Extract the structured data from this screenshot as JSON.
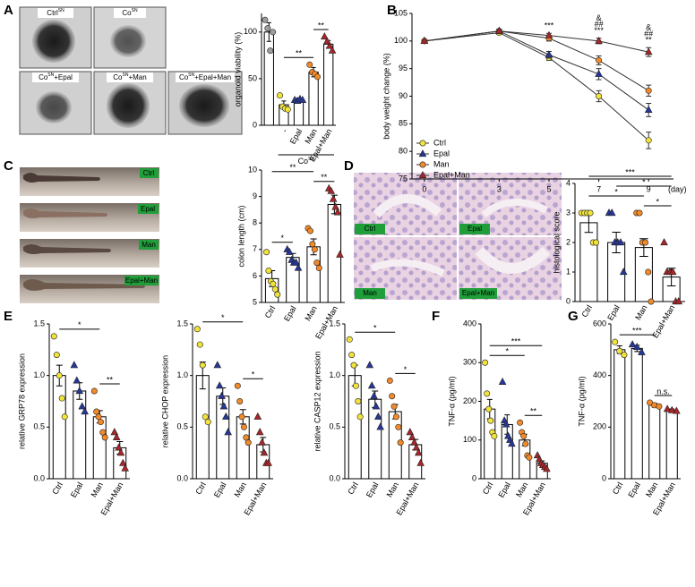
{
  "panel_labels": [
    "A",
    "B",
    "C",
    "D",
    "E",
    "F",
    "G"
  ],
  "images": {
    "A": [
      [
        "Ctrl",
        "SN"
      ],
      [
        "Co",
        "SN"
      ],
      [
        "Co",
        "SN",
        "+Epal"
      ],
      [
        "Co",
        "SN",
        "+Man"
      ],
      [
        "Co",
        "SN",
        "+Epal+Man"
      ]
    ],
    "C": [
      "Ctrl",
      "Epal",
      "Man",
      "Epal+Man"
    ],
    "D": [
      "Ctrl",
      "Epal",
      "Man",
      "Epal+Man"
    ]
  },
  "chart_data": [
    {
      "type": "bar",
      "ylabel": "organoid viability (%)",
      "categories": [
        null,
        "-",
        "Epal",
        "Man",
        "Epal+Man"
      ],
      "values": [
        100,
        22,
        27,
        57,
        87
      ],
      "errors": [
        10,
        4,
        2,
        5,
        4
      ],
      "points": [
        [
          113,
          104,
          80,
          100
        ],
        [
          32,
          20,
          18,
          17
        ],
        [
          27,
          26,
          28,
          27
        ],
        [
          65,
          57,
          55,
          52
        ],
        [
          95,
          90,
          85,
          80
        ]
      ],
      "colors": [
        "#9e9e9e",
        "#f2e33b",
        "#27379a",
        "#f28a2a",
        "#a8262a"
      ],
      "markers": [
        "circle",
        "circle",
        "triangle",
        "circle",
        "triangle"
      ],
      "ylim": [
        0,
        120
      ],
      "yticks": [
        0,
        50,
        100
      ],
      "annotations": [
        {
          "pair": [
            1,
            3
          ],
          "label": "**"
        },
        {
          "pair": [
            3,
            4
          ],
          "label": "**"
        }
      ],
      "group": {
        "label": [
          "Co",
          "SN"
        ],
        "range": [
          1,
          4
        ]
      }
    },
    {
      "type": "line",
      "ylabel": "body weight change (%)",
      "xlabel": "(day)",
      "x": [
        0,
        3,
        5,
        7,
        9
      ],
      "xlim": [
        -0.5,
        10
      ],
      "xticks": [
        0,
        3,
        5,
        7,
        9
      ],
      "ylim": [
        75,
        105
      ],
      "yticks": [
        75,
        80,
        85,
        90,
        95,
        100,
        105
      ],
      "legend": "lower left",
      "series": [
        {
          "name": "Ctrl",
          "color": "#f2e33b",
          "marker": "circle",
          "values": [
            100,
            101.5,
            97,
            90,
            82
          ],
          "errors": [
            0,
            0.3,
            0.5,
            1,
            1.5
          ]
        },
        {
          "name": "Epal",
          "color": "#27379a",
          "marker": "triangle",
          "values": [
            100,
            101.8,
            97.5,
            94,
            87.5
          ],
          "errors": [
            0,
            0.3,
            0.6,
            1,
            1.2
          ]
        },
        {
          "name": "Man",
          "color": "#f28a2a",
          "marker": "circle",
          "values": [
            100,
            101.8,
            100.5,
            96.5,
            91
          ],
          "errors": [
            0,
            0.3,
            0.5,
            0.8,
            1
          ]
        },
        {
          "name": "Epal+Man",
          "color": "#a8262a",
          "marker": "triangle",
          "values": [
            100,
            101.8,
            101,
            100,
            98
          ],
          "errors": [
            0,
            0.3,
            0.4,
            0.5,
            0.8
          ]
        }
      ],
      "point_annotations": [
        {
          "x_index": 2,
          "labels": [
            "***"
          ]
        },
        {
          "x_index": 3,
          "labels": [
            "&",
            "##",
            "***"
          ]
        },
        {
          "x_index": 4,
          "labels": [
            "&",
            "##",
            "**"
          ]
        }
      ]
    },
    {
      "type": "bar",
      "ylabel": "colon length (cm)",
      "categories": [
        "Ctrl",
        "Epal",
        "Man",
        "Epal+Man"
      ],
      "values": [
        5.9,
        6.7,
        7.1,
        8.7
      ],
      "errors": [
        0.3,
        0.15,
        0.3,
        0.35
      ],
      "points": [
        [
          6.9,
          6.2,
          5.8,
          5.7,
          5.5,
          5.3
        ],
        [
          7.0,
          6.9,
          6.6,
          6.5,
          6.5,
          6.3
        ],
        [
          7.8,
          7.7,
          7.2,
          7.0,
          6.5,
          6.3
        ],
        [
          9.3,
          9.2,
          8.9,
          8.6,
          8.4,
          6.8
        ]
      ],
      "colors": [
        "#f2e33b",
        "#27379a",
        "#f28a2a",
        "#a8262a"
      ],
      "markers": [
        "circle",
        "triangle",
        "circle",
        "triangle"
      ],
      "ylim": [
        5,
        10
      ],
      "yticks": [
        5,
        6,
        7,
        8,
        9,
        10
      ],
      "annotations": [
        {
          "pair": [
            0,
            1
          ],
          "label": "*"
        },
        {
          "pair": [
            2,
            3
          ],
          "label": "**"
        },
        {
          "pair": [
            0,
            2
          ],
          "label": "**"
        }
      ]
    },
    {
      "type": "bar",
      "ylabel": "histological score",
      "categories": [
        "Ctrl",
        "Epal",
        "Man",
        "Epal+Man"
      ],
      "values": [
        2.67,
        2.0,
        1.83,
        0.83
      ],
      "errors": [
        0.33,
        0.35,
        0.3,
        0.3
      ],
      "points": [
        [
          3,
          3,
          3,
          3,
          2,
          2
        ],
        [
          3,
          3,
          2,
          2,
          2,
          1
        ],
        [
          3,
          3,
          2,
          2,
          1,
          0
        ],
        [
          2,
          1,
          1,
          1,
          0,
          0
        ]
      ],
      "colors": [
        "#f2e33b",
        "#27379a",
        "#f28a2a",
        "#a8262a"
      ],
      "markers": [
        "circle",
        "triangle",
        "circle",
        "triangle"
      ],
      "ylim": [
        0,
        4
      ],
      "yticks": [
        0,
        1,
        2,
        3,
        4
      ],
      "annotations": [
        {
          "pair": [
            2,
            3
          ],
          "label": "*"
        },
        {
          "pair": [
            0,
            2
          ],
          "label": "*"
        },
        {
          "pair": [
            1,
            3
          ],
          "label": "*"
        },
        {
          "pair": [
            0,
            3
          ],
          "label": "***"
        }
      ]
    },
    {
      "type": "bar",
      "ylabel": "relative GRP78 expression",
      "categories": [
        "Ctrl",
        "Epal",
        "Man",
        "Epal+Man"
      ],
      "values": [
        1.0,
        0.85,
        0.6,
        0.3
      ],
      "errors": [
        0.1,
        0.08,
        0.06,
        0.06
      ],
      "points": [
        [
          1.38,
          1.2,
          1.0,
          0.78,
          0.6
        ],
        [
          1.1,
          0.95,
          0.85,
          0.7,
          0.65
        ],
        [
          0.85,
          0.65,
          0.6,
          0.55,
          0.45,
          0.4
        ],
        [
          0.45,
          0.4,
          0.3,
          0.25,
          0.15,
          0.1
        ]
      ],
      "colors": [
        "#f2e33b",
        "#27379a",
        "#f28a2a",
        "#a8262a"
      ],
      "markers": [
        "circle",
        "triangle",
        "circle",
        "triangle"
      ],
      "ylim": [
        0,
        1.5
      ],
      "yticks": [
        {
          "value": 0,
          "label": "0.0"
        },
        0.5,
        {
          "value": 1,
          "label": "1.0"
        },
        1.5
      ],
      "annotations": [
        {
          "pair": [
            2,
            3
          ],
          "label": "**"
        },
        {
          "pair": [
            0,
            2
          ],
          "label": "*"
        }
      ]
    },
    {
      "type": "bar",
      "ylabel": "relative CHOP expression",
      "categories": [
        "Ctrl",
        "Epal",
        "Man",
        "Epal+Man"
      ],
      "values": [
        1.0,
        0.8,
        0.6,
        0.33
      ],
      "errors": [
        0.13,
        0.08,
        0.07,
        0.07
      ],
      "points": [
        [
          1.45,
          1.3,
          1.1,
          0.6,
          0.55
        ],
        [
          1.1,
          0.9,
          0.8,
          0.7,
          0.6,
          0.45
        ],
        [
          0.9,
          0.75,
          0.6,
          0.5,
          0.4,
          0.35
        ],
        [
          0.6,
          0.45,
          0.35,
          0.25,
          0.15,
          0.15
        ]
      ],
      "colors": [
        "#f2e33b",
        "#27379a",
        "#f28a2a",
        "#a8262a"
      ],
      "markers": [
        "circle",
        "triangle",
        "circle",
        "triangle"
      ],
      "ylim": [
        0,
        1.5
      ],
      "yticks": [
        {
          "value": 0,
          "label": "0.0"
        },
        0.5,
        {
          "value": 1,
          "label": "1.0"
        },
        1.5
      ],
      "annotations": [
        {
          "pair": [
            2,
            3
          ],
          "label": "*"
        },
        {
          "pair": [
            0,
            2
          ],
          "label": "*"
        }
      ]
    },
    {
      "type": "bar",
      "ylabel": "relative CASP12 expression",
      "categories": [
        "Ctrl",
        "Epal",
        "Man",
        "Epal+Man"
      ],
      "values": [
        1.0,
        0.77,
        0.65,
        0.33
      ],
      "errors": [
        0.1,
        0.08,
        0.07,
        0.05
      ],
      "points": [
        [
          1.35,
          1.2,
          1.1,
          0.9,
          0.75,
          0.6
        ],
        [
          1.1,
          0.9,
          0.8,
          0.7,
          0.6,
          0.5
        ],
        [
          0.95,
          0.8,
          0.7,
          0.6,
          0.5,
          0.35
        ],
        [
          0.45,
          0.4,
          0.35,
          0.3,
          0.25,
          0.15
        ]
      ],
      "colors": [
        "#f2e33b",
        "#27379a",
        "#f28a2a",
        "#a8262a"
      ],
      "markers": [
        "circle",
        "triangle",
        "circle",
        "triangle"
      ],
      "ylim": [
        0,
        1.5
      ],
      "yticks": [
        {
          "value": 0,
          "label": "0.0"
        },
        0.5,
        {
          "value": 1,
          "label": "1.0"
        },
        1.5
      ],
      "annotations": [
        {
          "pair": [
            2,
            3
          ],
          "label": "*"
        },
        {
          "pair": [
            0,
            2
          ],
          "label": "*"
        }
      ]
    },
    {
      "type": "bar",
      "ylabel": "TNF-α (pg/ml)",
      "categories": [
        "Ctrl",
        "Epal",
        "Man",
        "Epal+Man"
      ],
      "values": [
        180,
        140,
        100,
        40
      ],
      "errors": [
        25,
        25,
        15,
        6
      ],
      "points": [
        [
          300,
          220,
          180,
          150,
          120,
          110
        ],
        [
          250,
          150,
          140,
          110,
          100,
          90
        ],
        [
          145,
          120,
          110,
          90,
          60,
          55
        ],
        [
          60,
          50,
          40,
          35,
          30,
          25
        ]
      ],
      "colors": [
        "#f2e33b",
        "#27379a",
        "#f28a2a",
        "#a8262a"
      ],
      "markers": [
        "circle",
        "triangle",
        "circle",
        "triangle"
      ],
      "ylim": [
        0,
        400
      ],
      "yticks": [
        0,
        100,
        200,
        300,
        400
      ],
      "annotations": [
        {
          "pair": [
            2,
            3
          ],
          "label": "**"
        },
        {
          "pair": [
            0,
            2
          ],
          "label": "*"
        },
        {
          "pair": [
            0,
            3
          ],
          "label": "***"
        }
      ]
    },
    {
      "type": "bar",
      "ylabel": "TNF-α (pg/ml)",
      "categories": [
        "Ctrl",
        "Epal",
        "Man",
        "Epal+Man"
      ],
      "values": [
        500,
        505,
        285,
        265
      ],
      "errors": [
        15,
        12,
        8,
        5
      ],
      "points": [
        [
          530,
          495,
          480
        ],
        [
          520,
          510,
          490
        ],
        [
          295,
          285,
          280
        ],
        [
          270,
          265,
          262
        ]
      ],
      "colors": [
        "#f2e33b",
        "#27379a",
        "#f28a2a",
        "#a8262a"
      ],
      "markers": [
        "circle",
        "triangle",
        "circle",
        "triangle"
      ],
      "ylim": [
        0,
        600
      ],
      "yticks": [
        0,
        200,
        400,
        600
      ],
      "annotations": [
        {
          "pair": [
            2,
            3
          ],
          "label": "n.s."
        },
        {
          "pair": [
            0,
            2
          ],
          "label": "***"
        }
      ]
    }
  ]
}
